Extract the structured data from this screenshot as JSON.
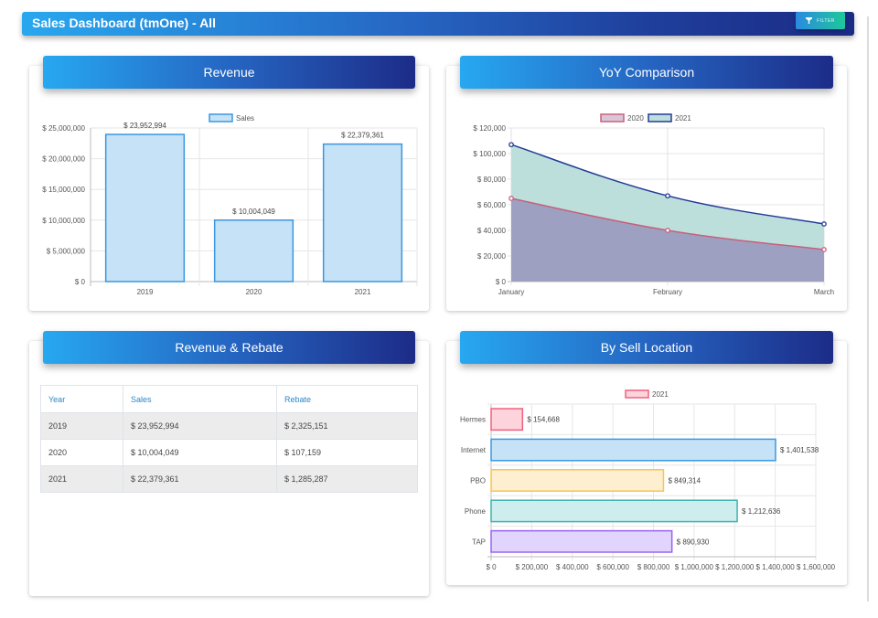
{
  "header": {
    "title": "Sales Dashboard (tmOne) - All",
    "filter_label": "FILTER",
    "filter_icon": "filter-icon"
  },
  "cards": {
    "revenue": {
      "title": "Revenue"
    },
    "yoy": {
      "title": "YoY Comparison"
    },
    "rebate": {
      "title": "Revenue & Rebate"
    },
    "location": {
      "title": "By Sell Location"
    }
  },
  "rebate_table": {
    "columns": [
      "Year",
      "Sales",
      "Rebate"
    ],
    "rows": [
      [
        "2019",
        "$ 23,952,994",
        "$ 2,325,151"
      ],
      [
        "2020",
        "$ 10,004,049",
        "$ 107,159"
      ],
      [
        "2021",
        "$ 22,379,361",
        "$ 1,285,287"
      ]
    ]
  },
  "chart_data": [
    {
      "type": "bar",
      "title": "Revenue",
      "legend": [
        "Sales"
      ],
      "categories": [
        "2019",
        "2020",
        "2021"
      ],
      "values": [
        23952994,
        10004049,
        22379361
      ],
      "data_labels": [
        "$ 23,952,994",
        "$ 10,004,049",
        "$ 22,379,361"
      ],
      "ylim": [
        0,
        25000000
      ],
      "yticks": [
        "$ 0",
        "$ 5,000,000",
        "$ 10,000,000",
        "$ 15,000,000",
        "$ 20,000,000",
        "$ 25,000,000"
      ],
      "colors": {
        "fill": "#c6e2f7",
        "stroke": "#3a97e0"
      }
    },
    {
      "type": "area",
      "title": "YoY Comparison",
      "x": [
        "January",
        "February",
        "March"
      ],
      "series": [
        {
          "name": "2020",
          "values": [
            65000,
            40000,
            25000
          ],
          "stroke": "#c8607a",
          "fill": "#9b9cbf"
        },
        {
          "name": "2021",
          "values": [
            107000,
            67000,
            45000
          ],
          "stroke": "#233a96",
          "fill": "#bcdfdc"
        }
      ],
      "ylim": [
        0,
        120000
      ],
      "yticks": [
        "$ 0",
        "$ 20,000",
        "$ 40,000",
        "$ 60,000",
        "$ 80,000",
        "$ 100,000",
        "$ 120,000"
      ]
    },
    {
      "type": "bar",
      "orientation": "horizontal",
      "title": "By Sell Location",
      "legend": [
        "2021"
      ],
      "categories": [
        "Hermes",
        "Internet",
        "PBO",
        "Phone",
        "TAP"
      ],
      "values": [
        154668,
        1401538,
        849314,
        1212636,
        890930
      ],
      "data_labels": [
        "$ 154,668",
        "$ 1,401,538",
        "$ 849,314",
        "$ 1,212,636",
        "$ 890,930"
      ],
      "xlim": [
        0,
        1600000
      ],
      "xticks": [
        "$ 0",
        "$ 200,000",
        "$ 400,000",
        "$ 600,000",
        "$ 800,000",
        "$ 1,000,000",
        "$ 1,200,000",
        "$ 1,400,000",
        "$ 1,600,000"
      ],
      "colors": [
        {
          "fill": "#fdd3dc",
          "stroke": "#f0607d"
        },
        {
          "fill": "#c6e2f7",
          "stroke": "#3a97e0"
        },
        {
          "fill": "#fdefcf",
          "stroke": "#f7c453"
        },
        {
          "fill": "#cdeeed",
          "stroke": "#3fb2b0"
        },
        {
          "fill": "#e2d5fd",
          "stroke": "#9a62ee"
        }
      ]
    }
  ]
}
